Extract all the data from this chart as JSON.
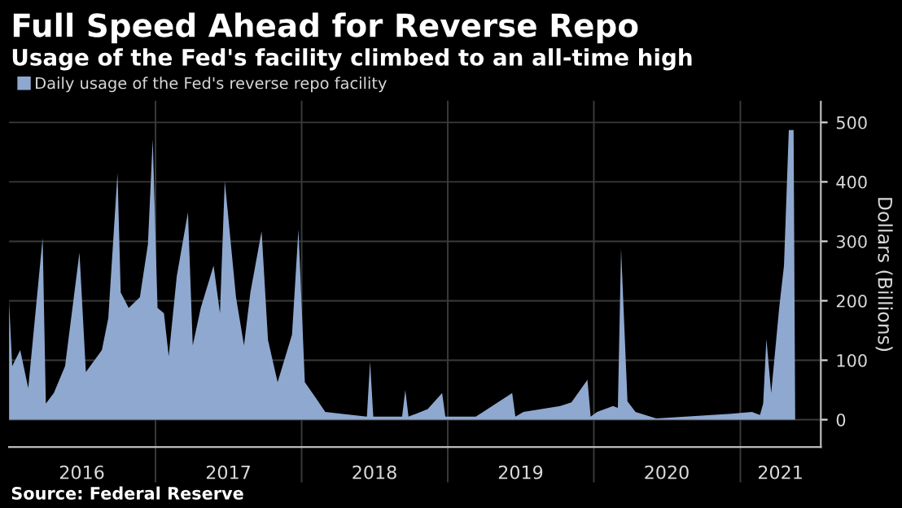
{
  "chart_data": {
    "type": "area",
    "title": "Full Speed Ahead for Reverse Repo",
    "subtitle": "Usage of the Fed's facility climbed to an all-time high",
    "ylabel": "Dollars (Billions)",
    "annotations": [
      "Source: Federal Reserve"
    ],
    "x": [
      "2016-01-01",
      "2016-01-09",
      "2016-01-29",
      "2016-02-18",
      "2016-03-25",
      "2016-04-02",
      "2016-04-22",
      "2016-05-20",
      "2016-06-25",
      "2016-07-11",
      "2016-08-20",
      "2016-09-05",
      "2016-09-28",
      "2016-10-06",
      "2016-10-26",
      "2016-11-23",
      "2016-12-13",
      "2016-12-25",
      "2017-01-06",
      "2017-01-22",
      "2017-02-03",
      "2017-02-23",
      "2017-03-23",
      "2017-04-04",
      "2017-04-24",
      "2017-05-26",
      "2017-06-11",
      "2017-06-23",
      "2017-07-21",
      "2017-08-10",
      "2017-08-26",
      "2017-09-23",
      "2017-10-09",
      "2017-11-02",
      "2017-12-08",
      "2017-12-24",
      "2018-01-09",
      "2018-02-05",
      "2018-03-01",
      "2018-04-10",
      "2018-06-13",
      "2018-06-21",
      "2018-06-29",
      "2018-09-09",
      "2018-09-17",
      "2018-09-25",
      "2018-11-12",
      "2018-12-18",
      "2018-12-26",
      "2019-03-12",
      "2019-06-11",
      "2019-06-19",
      "2019-07-09",
      "2019-10-09",
      "2019-11-06",
      "2019-12-16",
      "2019-12-24",
      "2020-01-09",
      "2020-02-18",
      "2020-03-01",
      "2020-03-09",
      "2020-03-25",
      "2020-04-14",
      "2020-06-05",
      "2020-12-09",
      "2021-01-30",
      "2021-02-19",
      "2021-02-27",
      "2021-03-07",
      "2021-03-19",
      "2021-04-08",
      "2021-04-20",
      "2021-05-02",
      "2021-05-14",
      "2021-05-18"
    ],
    "series": [
      {
        "name": "Daily usage of the Fed's reverse repo facility",
        "color": "#8fa8cf",
        "values": [
          201,
          90,
          117,
          53,
          306,
          27,
          45,
          90,
          281,
          80,
          117,
          171,
          415,
          214,
          188,
          206,
          295,
          472,
          188,
          179,
          107,
          241,
          349,
          125,
          188,
          259,
          179,
          402,
          206,
          125,
          214,
          317,
          134,
          63,
          143,
          320,
          63,
          37,
          13,
          10,
          5,
          98,
          5,
          5,
          50,
          5,
          18,
          45,
          5,
          5,
          45,
          5,
          13,
          23,
          29,
          67,
          5,
          13,
          23,
          20,
          288,
          31,
          13,
          2,
          10,
          13,
          8,
          27,
          136,
          45,
          188,
          259,
          487,
          487,
          0
        ]
      }
    ],
    "xlim": [
      "2016-01-01",
      "2021-07-21"
    ],
    "xticks": [
      {
        "value": "2016-07-01",
        "label": "2016"
      },
      {
        "value": "2017-07-02",
        "label": "2017"
      },
      {
        "value": "2018-07-02",
        "label": "2018"
      },
      {
        "value": "2019-07-02",
        "label": "2019"
      },
      {
        "value": "2020-07-01",
        "label": "2020"
      },
      {
        "value": "2021-04-11",
        "label": "2021"
      }
    ],
    "ylim": [
      -46,
      535
    ],
    "yticks": [
      0,
      100,
      200,
      300,
      400,
      500
    ],
    "ref_lines": [
      {
        "axis": "x",
        "value": "2017-01-01",
        "color": "#3a3a3a"
      },
      {
        "axis": "x",
        "value": "2018-01-01",
        "color": "#3a3a3a"
      },
      {
        "axis": "x",
        "value": "2019-01-01",
        "color": "#3a3a3a"
      },
      {
        "axis": "x",
        "value": "2020-01-01",
        "color": "#3a3a3a"
      },
      {
        "axis": "x",
        "value": "2021-01-01",
        "color": "#3a3a3a"
      }
    ],
    "grid": "y",
    "legend": "top left"
  }
}
